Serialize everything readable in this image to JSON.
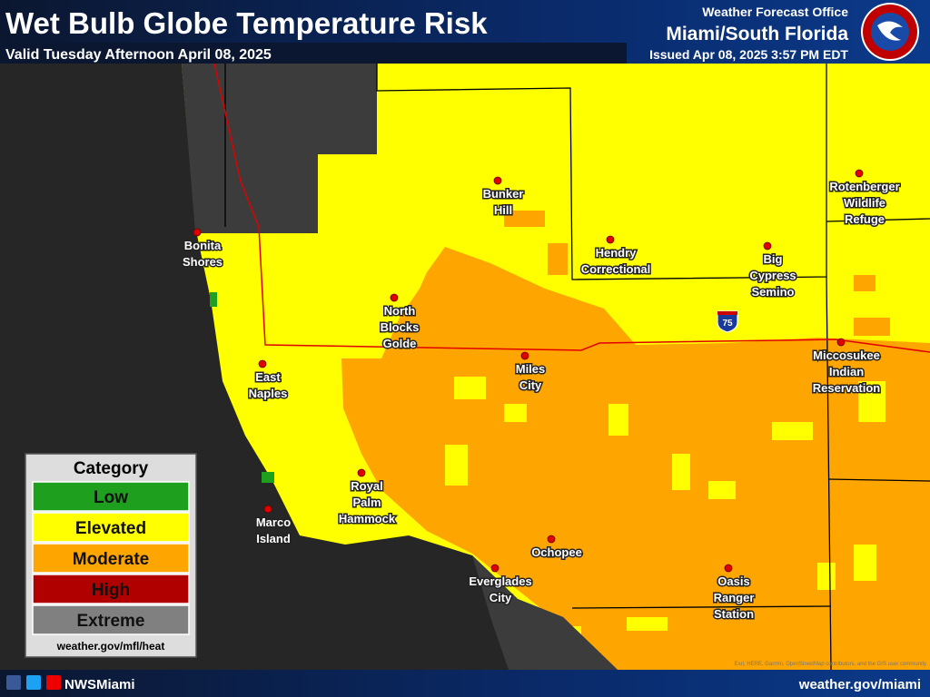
{
  "header": {
    "title": "Wet Bulb Globe Temperature Risk",
    "valid": "Valid Tuesday Afternoon April 08, 2025",
    "office_line1": "Weather Forecast Office",
    "office_line2": "Miami/South Florida",
    "issued": "Issued Apr 08, 2025 3:57 PM EDT"
  },
  "map": {
    "places": [
      {
        "lines": [
          "Bunker",
          "Hill"
        ]
      },
      {
        "lines": [
          "Bonita",
          "Shores"
        ]
      },
      {
        "lines": [
          "Hendry",
          "Correctional"
        ]
      },
      {
        "lines": [
          "Rotenberger",
          "Wildlife",
          "Refuge"
        ]
      },
      {
        "lines": [
          "Big",
          "Cypress",
          "Semino"
        ]
      },
      {
        "lines": [
          "North",
          "Blocks",
          "Golde"
        ]
      },
      {
        "lines": [
          "Miles",
          "City"
        ]
      },
      {
        "lines": [
          "Miccosukee",
          "Indian",
          "Reservation"
        ]
      },
      {
        "lines": [
          "East",
          "Naples"
        ]
      },
      {
        "lines": [
          "Royal",
          "Palm",
          "Hammock"
        ]
      },
      {
        "lines": [
          "Marco",
          "Island"
        ]
      },
      {
        "lines": [
          "Ochopee"
        ]
      },
      {
        "lines": [
          "Everglades",
          "City"
        ]
      },
      {
        "lines": [
          "Oasis",
          "Ranger",
          "Station"
        ]
      }
    ],
    "highway": "75",
    "attribution": "Esri, HERE, Garmin, OpenStreetMap contributors, and the GIS user community"
  },
  "legend": {
    "title": "Category",
    "items": [
      {
        "label": "Low",
        "color": "#1ea01e"
      },
      {
        "label": "Elevated",
        "color": "#ffff00"
      },
      {
        "label": "Moderate",
        "color": "#ffa500"
      },
      {
        "label": "High",
        "color": "#b00000"
      },
      {
        "label": "Extreme",
        "color": "#808080"
      }
    ],
    "url": "weather.gov/mfl/heat"
  },
  "footer": {
    "handle": "NWSMiami",
    "url": "weather.gov/miami"
  }
}
